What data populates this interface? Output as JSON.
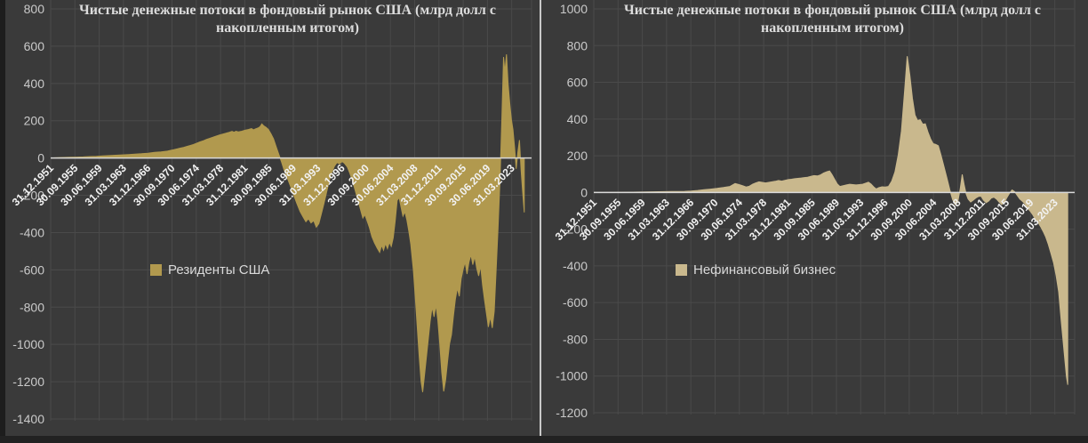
{
  "page": {
    "background_color": "#3a3a3a",
    "grid_color": "#4a4a4a",
    "zero_line_color": "#d9d9d9",
    "y_label_color": "#c9c9c9",
    "x_label_color": "#f2f2f2",
    "divider_color": "#c9c9c9"
  },
  "chart_data": [
    {
      "type": "area",
      "title": "Чистые денежные потоки в фондовый рынок США (млрд долл с накопленным итогом)",
      "legend_label": "Резиденты США",
      "fill_color": "#b1994e",
      "ylim": [
        -1400,
        800
      ],
      "y_step": 200,
      "grid": true,
      "legend_position": "inside-left",
      "x_tick_labels": [
        "31.12.1951",
        "30.09.1955",
        "30.06.1959",
        "31.03.1963",
        "31.12.1966",
        "30.09.1970",
        "30.06.1974",
        "31.03.1978",
        "31.12.1981",
        "30.09.1985",
        "30.06.1989",
        "31.03.1993",
        "31.12.1996",
        "30.09.2000",
        "30.06.2004",
        "31.03.2008",
        "31.12.2011",
        "30.09.2015",
        "30.06.2019",
        "31.03.2023"
      ],
      "x_start_year": 1951.96,
      "x_tick_interval_years": 3.75,
      "points": [
        [
          1951.96,
          0
        ],
        [
          1953,
          2
        ],
        [
          1954,
          3
        ],
        [
          1955,
          4
        ],
        [
          1956,
          5
        ],
        [
          1957,
          6
        ],
        [
          1958,
          8
        ],
        [
          1959,
          9
        ],
        [
          1960,
          11
        ],
        [
          1961,
          13
        ],
        [
          1962,
          15
        ],
        [
          1963,
          17
        ],
        [
          1964,
          19
        ],
        [
          1965,
          21
        ],
        [
          1966,
          23
        ],
        [
          1967,
          26
        ],
        [
          1968,
          30
        ],
        [
          1969,
          33
        ],
        [
          1970,
          37
        ],
        [
          1970.5,
          41
        ],
        [
          1971,
          45
        ],
        [
          1971.5,
          49
        ],
        [
          1972,
          53
        ],
        [
          1972.5,
          57
        ],
        [
          1973,
          62
        ],
        [
          1973.5,
          67
        ],
        [
          1974,
          72
        ],
        [
          1974.5,
          79
        ],
        [
          1975,
          86
        ],
        [
          1975.5,
          92
        ],
        [
          1976,
          99
        ],
        [
          1976.5,
          105
        ],
        [
          1977,
          111
        ],
        [
          1977.5,
          117
        ],
        [
          1978,
          123
        ],
        [
          1978.5,
          128
        ],
        [
          1979,
          133
        ],
        [
          1979.5,
          137
        ],
        [
          1980,
          143
        ],
        [
          1980.3,
          138
        ],
        [
          1980.6,
          144
        ],
        [
          1981,
          140
        ],
        [
          1981.5,
          144
        ],
        [
          1982,
          149
        ],
        [
          1982.5,
          153
        ],
        [
          1983,
          158
        ],
        [
          1983.3,
          151
        ],
        [
          1983.6,
          156
        ],
        [
          1984,
          161
        ],
        [
          1984.3,
          167
        ],
        [
          1984.6,
          183
        ],
        [
          1984.9,
          172
        ],
        [
          1985.2,
          166
        ],
        [
          1985.6,
          154
        ],
        [
          1986,
          130
        ],
        [
          1986.4,
          103
        ],
        [
          1986.8,
          62
        ],
        [
          1987.2,
          22
        ],
        [
          1987.6,
          -18
        ],
        [
          1988,
          -62
        ],
        [
          1988.5,
          -105
        ],
        [
          1989,
          -150
        ],
        [
          1989.5,
          -198
        ],
        [
          1990,
          -243
        ],
        [
          1990.5,
          -287
        ],
        [
          1991,
          -318
        ],
        [
          1991.4,
          -342
        ],
        [
          1991.8,
          -326
        ],
        [
          1992.2,
          -348
        ],
        [
          1992.6,
          -336
        ],
        [
          1993,
          -371
        ],
        [
          1993.4,
          -352
        ],
        [
          1993.8,
          -298
        ],
        [
          1994.2,
          -243
        ],
        [
          1994.6,
          -184
        ],
        [
          1995,
          -124
        ],
        [
          1995.4,
          -78
        ],
        [
          1995.8,
          -44
        ],
        [
          1996.2,
          -24
        ],
        [
          1996.6,
          -32
        ],
        [
          1997,
          -18
        ],
        [
          1997.4,
          -30
        ],
        [
          1997.8,
          -48
        ],
        [
          1998.2,
          -82
        ],
        [
          1998.6,
          -122
        ],
        [
          1999,
          -172
        ],
        [
          1999.4,
          -222
        ],
        [
          1999.8,
          -272
        ],
        [
          2000.2,
          -322
        ],
        [
          2000.5,
          -304
        ],
        [
          2000.8,
          -332
        ],
        [
          2001.2,
          -372
        ],
        [
          2001.6,
          -422
        ],
        [
          2002,
          -455
        ],
        [
          2002.4,
          -482
        ],
        [
          2002.8,
          -506
        ],
        [
          2003.1,
          -468
        ],
        [
          2003.4,
          -494
        ],
        [
          2003.7,
          -458
        ],
        [
          2004,
          -486
        ],
        [
          2004.3,
          -452
        ],
        [
          2004.6,
          -474
        ],
        [
          2004.9,
          -428
        ],
        [
          2005.2,
          -338
        ],
        [
          2005.5,
          -228
        ],
        [
          2005.8,
          -212
        ],
        [
          2006.1,
          -262
        ],
        [
          2006.4,
          -312
        ],
        [
          2006.7,
          -288
        ],
        [
          2007,
          -332
        ],
        [
          2007.3,
          -392
        ],
        [
          2007.6,
          -462
        ],
        [
          2008,
          -600
        ],
        [
          2008.3,
          -748
        ],
        [
          2008.6,
          -898
        ],
        [
          2008.9,
          -1058
        ],
        [
          2009.2,
          -1198
        ],
        [
          2009.45,
          -1256
        ],
        [
          2009.7,
          -1178
        ],
        [
          2010,
          -1078
        ],
        [
          2010.3,
          -978
        ],
        [
          2010.6,
          -878
        ],
        [
          2010.9,
          -798
        ],
        [
          2011.2,
          -852
        ],
        [
          2011.5,
          -788
        ],
        [
          2011.8,
          -872
        ],
        [
          2012.1,
          -1002
        ],
        [
          2012.4,
          -1152
        ],
        [
          2012.7,
          -1252
        ],
        [
          2013,
          -1188
        ],
        [
          2013.3,
          -1088
        ],
        [
          2013.6,
          -998
        ],
        [
          2013.9,
          -948
        ],
        [
          2014.2,
          -848
        ],
        [
          2014.5,
          -758
        ],
        [
          2014.8,
          -698
        ],
        [
          2015.1,
          -742
        ],
        [
          2015.4,
          -648
        ],
        [
          2015.7,
          -598
        ],
        [
          2016,
          -558
        ],
        [
          2016.3,
          -622
        ],
        [
          2016.6,
          -558
        ],
        [
          2016.9,
          -518
        ],
        [
          2017.2,
          -572
        ],
        [
          2017.5,
          -528
        ],
        [
          2017.8,
          -592
        ],
        [
          2018.1,
          -632
        ],
        [
          2018.4,
          -578
        ],
        [
          2018.7,
          -682
        ],
        [
          2019,
          -762
        ],
        [
          2019.3,
          -832
        ],
        [
          2019.6,
          -906
        ],
        [
          2019.9,
          -852
        ],
        [
          2020.2,
          -912
        ],
        [
          2020.5,
          -822
        ],
        [
          2020.8,
          -598
        ],
        [
          2021.1,
          -378
        ],
        [
          2021.4,
          -118
        ],
        [
          2021.7,
          232
        ],
        [
          2021.95,
          542
        ],
        [
          2022.15,
          462
        ],
        [
          2022.4,
          556
        ],
        [
          2022.65,
          398
        ],
        [
          2022.9,
          298
        ],
        [
          2023.15,
          208
        ],
        [
          2023.4,
          152
        ],
        [
          2023.65,
          58
        ],
        [
          2023.9,
          -58
        ],
        [
          2024.15,
          28
        ],
        [
          2024.4,
          96
        ],
        [
          2024.65,
          -62
        ],
        [
          2024.9,
          -182
        ],
        [
          2025.15,
          -292
        ]
      ]
    },
    {
      "type": "area",
      "title": "Чистые денежные потоки в фондовый рынок США (млрд долл с накопленным итогом)",
      "legend_label": "Нефинансовый бизнес",
      "fill_color": "#c9b88d",
      "ylim": [
        -1200,
        1000
      ],
      "y_step": 200,
      "grid": true,
      "legend_position": "inside-left",
      "x_tick_labels": [
        "31.12.1951",
        "30.09.1955",
        "30.06.1959",
        "31.03.1963",
        "31.12.1966",
        "30.09.1970",
        "30.06.1974",
        "31.03.1978",
        "31.12.1981",
        "30.09.1985",
        "30.06.1989",
        "31.03.1993",
        "31.12.1996",
        "30.09.2000",
        "30.06.2004",
        "31.03.2008",
        "31.12.2011",
        "30.09.2015",
        "30.06.2019",
        "31.03.2023"
      ],
      "x_start_year": 1951.96,
      "x_tick_interval_years": 3.75,
      "points": [
        [
          1951.96,
          0
        ],
        [
          1955,
          1
        ],
        [
          1958,
          2
        ],
        [
          1960,
          3
        ],
        [
          1962,
          4
        ],
        [
          1964,
          5
        ],
        [
          1966,
          6
        ],
        [
          1967,
          8
        ],
        [
          1968,
          11
        ],
        [
          1969,
          15
        ],
        [
          1970,
          18
        ],
        [
          1971,
          22
        ],
        [
          1972,
          27
        ],
        [
          1973,
          33
        ],
        [
          1973.8,
          49
        ],
        [
          1974.4,
          43
        ],
        [
          1975,
          36
        ],
        [
          1975.5,
          30
        ],
        [
          1976,
          34
        ],
        [
          1976.5,
          45
        ],
        [
          1977,
          52
        ],
        [
          1977.5,
          58
        ],
        [
          1978,
          55
        ],
        [
          1978.5,
          52
        ],
        [
          1979,
          55
        ],
        [
          1979.5,
          58
        ],
        [
          1980,
          61
        ],
        [
          1980.5,
          65
        ],
        [
          1981,
          62
        ],
        [
          1981.5,
          66
        ],
        [
          1982,
          70
        ],
        [
          1982.5,
          72
        ],
        [
          1983,
          75
        ],
        [
          1983.5,
          77
        ],
        [
          1984,
          79
        ],
        [
          1984.5,
          81
        ],
        [
          1985,
          83
        ],
        [
          1985.5,
          88
        ],
        [
          1986,
          92
        ],
        [
          1986.5,
          90
        ],
        [
          1987,
          96
        ],
        [
          1987.5,
          106
        ],
        [
          1988,
          113
        ],
        [
          1988.4,
          117
        ],
        [
          1988.8,
          96
        ],
        [
          1989.2,
          70
        ],
        [
          1989.6,
          46
        ],
        [
          1990,
          33
        ],
        [
          1990.5,
          37
        ],
        [
          1991,
          41
        ],
        [
          1991.5,
          45
        ],
        [
          1992,
          43
        ],
        [
          1992.5,
          41
        ],
        [
          1993,
          43
        ],
        [
          1993.5,
          45
        ],
        [
          1994,
          51
        ],
        [
          1994.4,
          56
        ],
        [
          1994.8,
          46
        ],
        [
          1995.2,
          31
        ],
        [
          1995.6,
          19
        ],
        [
          1996,
          26
        ],
        [
          1996.5,
          31
        ],
        [
          1997,
          30
        ],
        [
          1997.5,
          33
        ],
        [
          1998,
          62
        ],
        [
          1998.5,
          112
        ],
        [
          1999,
          205
        ],
        [
          1999.5,
          335
        ],
        [
          2000,
          555
        ],
        [
          2000.4,
          742
        ],
        [
          2000.8,
          638
        ],
        [
          2001.2,
          512
        ],
        [
          2001.6,
          422
        ],
        [
          2002,
          392
        ],
        [
          2002.4,
          396
        ],
        [
          2002.8,
          372
        ],
        [
          2003.2,
          374
        ],
        [
          2003.6,
          330
        ],
        [
          2004,
          292
        ],
        [
          2004.4,
          266
        ],
        [
          2004.8,
          262
        ],
        [
          2005.2,
          254
        ],
        [
          2005.6,
          206
        ],
        [
          2006,
          152
        ],
        [
          2006.5,
          82
        ],
        [
          2007,
          12
        ],
        [
          2007.4,
          -38
        ],
        [
          2007.8,
          -66
        ],
        [
          2008.2,
          -54
        ],
        [
          2008.6,
          22
        ],
        [
          2008.9,
          98
        ],
        [
          2009.2,
          42
        ],
        [
          2009.5,
          -8
        ],
        [
          2009.8,
          -36
        ],
        [
          2010.2,
          -52
        ],
        [
          2010.6,
          -42
        ],
        [
          2011,
          -30
        ],
        [
          2011.4,
          -22
        ],
        [
          2011.8,
          -20
        ],
        [
          2012.2,
          -42
        ],
        [
          2012.6,
          -56
        ],
        [
          2013,
          -46
        ],
        [
          2013.4,
          -30
        ],
        [
          2013.8,
          -26
        ],
        [
          2014.2,
          -36
        ],
        [
          2014.6,
          -52
        ],
        [
          2015,
          -66
        ],
        [
          2015.4,
          -54
        ],
        [
          2015.8,
          -28
        ],
        [
          2016.2,
          -4
        ],
        [
          2016.6,
          14
        ],
        [
          2017,
          4
        ],
        [
          2017.4,
          -16
        ],
        [
          2017.8,
          -36
        ],
        [
          2018.2,
          -48
        ],
        [
          2018.6,
          -62
        ],
        [
          2019,
          -86
        ],
        [
          2019.4,
          -102
        ],
        [
          2019.8,
          -122
        ],
        [
          2020.2,
          -146
        ],
        [
          2020.6,
          -162
        ],
        [
          2021,
          -186
        ],
        [
          2021.4,
          -212
        ],
        [
          2021.8,
          -242
        ],
        [
          2022.2,
          -282
        ],
        [
          2022.6,
          -332
        ],
        [
          2023,
          -382
        ],
        [
          2023.4,
          -452
        ],
        [
          2023.8,
          -542
        ],
        [
          2024.2,
          -702
        ],
        [
          2024.6,
          -852
        ],
        [
          2025,
          -1002
        ],
        [
          2025.2,
          -1048
        ]
      ]
    }
  ]
}
